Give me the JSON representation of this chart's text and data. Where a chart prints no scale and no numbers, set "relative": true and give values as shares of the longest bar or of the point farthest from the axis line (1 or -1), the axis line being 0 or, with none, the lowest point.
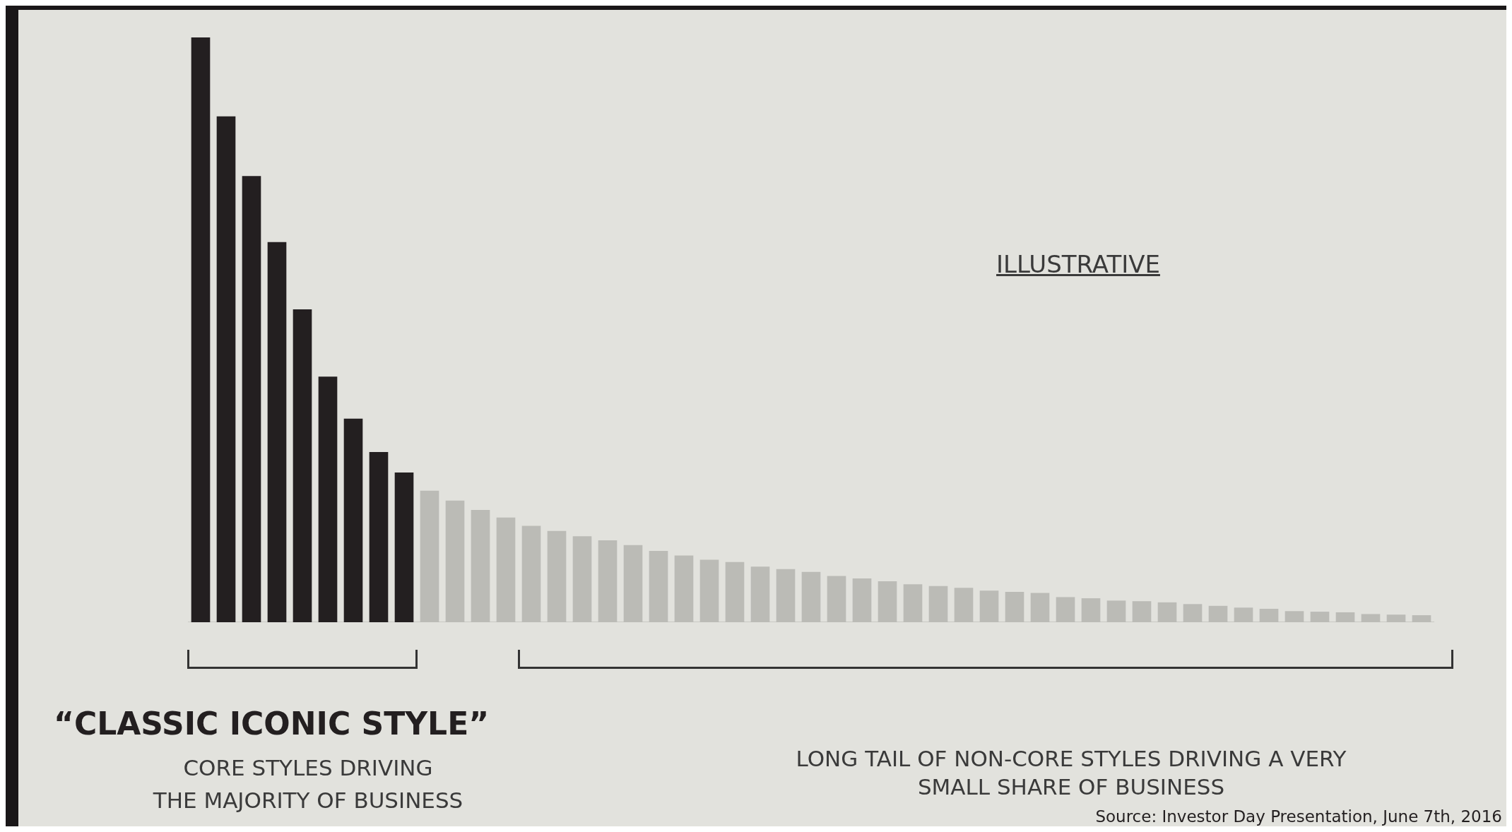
{
  "chart_data": {
    "type": "bar",
    "relative": true,
    "categories": [
      null,
      null,
      null,
      null,
      null,
      null,
      null,
      null,
      null,
      null,
      null,
      null,
      null,
      null,
      null,
      null,
      null,
      null,
      null,
      null,
      null,
      null,
      null,
      null,
      null,
      null,
      null,
      null,
      null,
      null,
      null,
      null,
      null,
      null,
      null,
      null,
      null,
      null,
      null,
      null,
      null,
      null,
      null,
      null,
      null,
      null,
      null,
      null,
      null
    ],
    "values": [
      1,
      0.865,
      0.763,
      0.65,
      0.535,
      0.42,
      0.348,
      0.291,
      0.256,
      0.225,
      0.208,
      0.192,
      0.179,
      0.165,
      0.156,
      0.147,
      0.14,
      0.132,
      0.122,
      0.114,
      0.107,
      0.103,
      0.095,
      0.091,
      0.086,
      0.079,
      0.075,
      0.07,
      0.065,
      0.062,
      0.059,
      0.054,
      0.052,
      0.05,
      0.043,
      0.041,
      0.037,
      0.036,
      0.034,
      0.031,
      0.028,
      0.025,
      0.023,
      0.019,
      0.018,
      0.017,
      0.014,
      0.013,
      0.012
    ],
    "colors": [
      "#231f20",
      "#231f20",
      "#231f20",
      "#231f20",
      "#231f20",
      "#231f20",
      "#231f20",
      "#231f20",
      "#231f20",
      "#bbbbb6",
      "#bbbbb6",
      "#bbbbb6",
      "#bbbbb6",
      "#bbbbb6",
      "#bbbbb6",
      "#bbbbb6",
      "#bbbbb6",
      "#bbbbb6",
      "#bbbbb6",
      "#bbbbb6",
      "#bbbbb6",
      "#bbbbb6",
      "#bbbbb6",
      "#bbbbb6",
      "#bbbbb6",
      "#bbbbb6",
      "#bbbbb6",
      "#bbbbb6",
      "#bbbbb6",
      "#bbbbb6",
      "#bbbbb6",
      "#bbbbb6",
      "#bbbbb6",
      "#bbbbb6",
      "#bbbbb6",
      "#bbbbb6",
      "#bbbbb6",
      "#bbbbb6",
      "#bbbbb6",
      "#bbbbb6",
      "#bbbbb6",
      "#bbbbb6",
      "#bbbbb6",
      "#bbbbb6",
      "#bbbbb6",
      "#bbbbb6",
      "#bbbbb6",
      "#bbbbb6",
      "#bbbbb6"
    ],
    "annotations": [
      "ILLUSTRATIVE",
      "“CLASSIC ICONIC STYLE”",
      "CORE STYLES DRIVING\nTHE MAJORITY OF BUSINESS",
      "LONG TAIL OF NON-CORE STYLES DRIVING A VERY\nSMALL SHARE OF BUSINESS",
      "Source: Investor Day Presentation, June 7th, 2016"
    ],
    "legend": false
  }
}
